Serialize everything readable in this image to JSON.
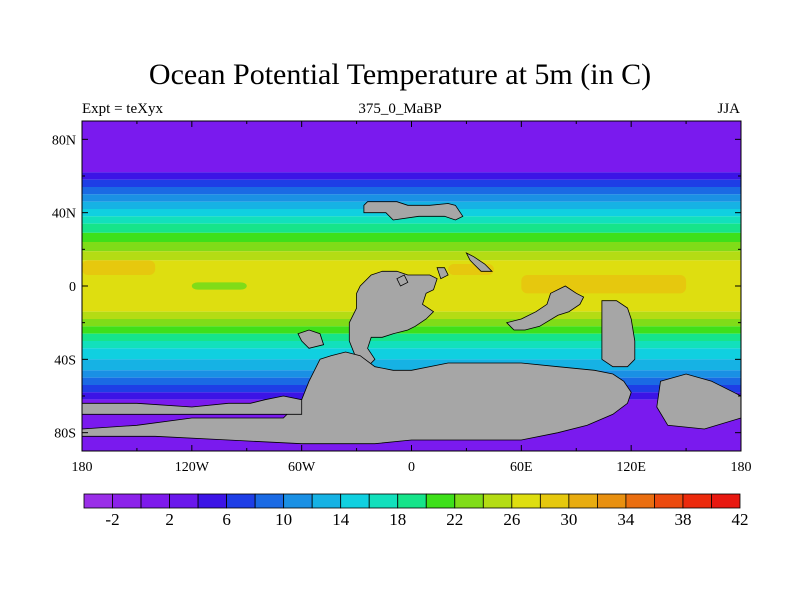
{
  "title": "Ocean Potential Temperature at 5m (in C)",
  "subtitle_left": "Expt = teXyx",
  "subtitle_center": "375_0_MaBP",
  "subtitle_right": "JJA",
  "lat_labels": [
    "80N",
    "40N",
    "0",
    "40S",
    "80S"
  ],
  "lat_values": [
    80,
    40,
    0,
    -40,
    -80
  ],
  "lon_labels": [
    "180",
    "120W",
    "60W",
    "0",
    "60E",
    "120E",
    "180"
  ],
  "lon_values": [
    -180,
    -120,
    -60,
    0,
    60,
    120,
    180
  ],
  "colorbar": {
    "labels": [
      "-2",
      "2",
      "6",
      "10",
      "14",
      "18",
      "22",
      "26",
      "30",
      "34",
      "38",
      "42"
    ],
    "colors": [
      "#9a2ee8",
      "#8c22ea",
      "#7e1aec",
      "#6a18ec",
      "#3c14e6",
      "#1e3ee6",
      "#1a6ae4",
      "#1a90e4",
      "#16b2e4",
      "#10d0e0",
      "#12e0bc",
      "#16e48a",
      "#3ee01a",
      "#80dc18",
      "#b4dc14",
      "#dede10",
      "#e6c80e",
      "#e8ac10",
      "#e89010",
      "#ea6e10",
      "#ec4a0e",
      "#ec2a0c",
      "#e81810"
    ]
  },
  "land_color": "#a6a6a6",
  "map_fields": {
    "zonal_bands": [
      {
        "lat_top": 90,
        "lat_bottom": 62,
        "color": "#7a1aee"
      },
      {
        "lat_top": 62,
        "lat_bottom": 58,
        "color": "#3c14e6"
      },
      {
        "lat_top": 58,
        "lat_bottom": 54,
        "color": "#1e3ee6"
      },
      {
        "lat_top": 54,
        "lat_bottom": 50,
        "color": "#1a6ae4"
      },
      {
        "lat_top": 50,
        "lat_bottom": 46,
        "color": "#1a90e4"
      },
      {
        "lat_top": 46,
        "lat_bottom": 42,
        "color": "#16b2e4"
      },
      {
        "lat_top": 42,
        "lat_bottom": 38,
        "color": "#10d0e0"
      },
      {
        "lat_top": 38,
        "lat_bottom": 34,
        "color": "#12e0bc"
      },
      {
        "lat_top": 34,
        "lat_bottom": 29,
        "color": "#16e48a"
      },
      {
        "lat_top": 29,
        "lat_bottom": 24,
        "color": "#3ee01a"
      },
      {
        "lat_top": 24,
        "lat_bottom": 19,
        "color": "#80dc18"
      },
      {
        "lat_top": 19,
        "lat_bottom": 14,
        "color": "#b4dc14"
      },
      {
        "lat_top": 14,
        "lat_bottom": -14,
        "color": "#dede10"
      },
      {
        "lat_top": -14,
        "lat_bottom": -18,
        "color": "#b4dc14"
      },
      {
        "lat_top": -18,
        "lat_bottom": -22,
        "color": "#80dc18"
      },
      {
        "lat_top": -22,
        "lat_bottom": -26,
        "color": "#3ee01a"
      },
      {
        "lat_top": -26,
        "lat_bottom": -30,
        "color": "#16e48a"
      },
      {
        "lat_top": -30,
        "lat_bottom": -34,
        "color": "#12e0bc"
      },
      {
        "lat_top": -34,
        "lat_bottom": -40,
        "color": "#10d0e0"
      },
      {
        "lat_top": -40,
        "lat_bottom": -46,
        "color": "#16b2e4"
      },
      {
        "lat_top": -46,
        "lat_bottom": -50,
        "color": "#1a90e4"
      },
      {
        "lat_top": -50,
        "lat_bottom": -54,
        "color": "#1a6ae4"
      },
      {
        "lat_top": -54,
        "lat_bottom": -58,
        "color": "#1e3ee6"
      },
      {
        "lat_top": -58,
        "lat_bottom": -62,
        "color": "#3c14e6"
      },
      {
        "lat_top": -62,
        "lat_bottom": -90,
        "color": "#7a1aee"
      }
    ],
    "warm_patches": [
      {
        "lon": [
          -180,
          -140
        ],
        "lat": [
          14,
          6
        ],
        "color": "#e6c80e"
      },
      {
        "lon": [
          -120,
          -90
        ],
        "lat": [
          2,
          -2
        ],
        "color": "#80dc18"
      },
      {
        "lon": [
          60,
          150
        ],
        "lat": [
          6,
          -4
        ],
        "color": "#e6c80e"
      },
      {
        "lon": [
          20,
          45
        ],
        "lat": [
          12,
          6
        ],
        "color": "#e6c80e"
      }
    ],
    "land": [
      [
        [
          -26,
          44
        ],
        [
          -24,
          46
        ],
        [
          -8,
          46
        ],
        [
          -2,
          44
        ],
        [
          10,
          44
        ],
        [
          20,
          45
        ],
        [
          24,
          44
        ],
        [
          28,
          38
        ],
        [
          24,
          36
        ],
        [
          18,
          38
        ],
        [
          10,
          38
        ],
        [
          4,
          38
        ],
        [
          -10,
          36
        ],
        [
          -14,
          40
        ],
        [
          -26,
          40
        ]
      ],
      [
        [
          30,
          18
        ],
        [
          34,
          16
        ],
        [
          40,
          12
        ],
        [
          44,
          8
        ],
        [
          38,
          8
        ],
        [
          34,
          12
        ],
        [
          32,
          14
        ]
      ],
      [
        [
          -22,
          6
        ],
        [
          -16,
          8
        ],
        [
          -8,
          8
        ],
        [
          -2,
          6
        ],
        [
          4,
          6
        ],
        [
          10,
          6
        ],
        [
          14,
          4
        ],
        [
          12,
          -2
        ],
        [
          8,
          -4
        ],
        [
          6,
          -10
        ],
        [
          12,
          -14
        ],
        [
          8,
          -18
        ],
        [
          2,
          -22
        ],
        [
          -2,
          -24
        ],
        [
          -10,
          -26
        ],
        [
          -16,
          -28
        ],
        [
          -22,
          -28
        ],
        [
          -24,
          -34
        ],
        [
          -20,
          -40
        ],
        [
          -24,
          -44
        ],
        [
          -30,
          -46
        ],
        [
          -30,
          -40
        ],
        [
          -34,
          -30
        ],
        [
          -34,
          -20
        ],
        [
          -30,
          -12
        ],
        [
          -30,
          -4
        ],
        [
          -28,
          0
        ]
      ],
      [
        [
          76,
          -4
        ],
        [
          84,
          0
        ],
        [
          90,
          -4
        ],
        [
          94,
          -6
        ],
        [
          92,
          -10
        ],
        [
          86,
          -14
        ],
        [
          80,
          -16
        ],
        [
          70,
          -22
        ],
        [
          62,
          -24
        ],
        [
          56,
          -24
        ],
        [
          52,
          -20
        ],
        [
          60,
          -18
        ],
        [
          68,
          -14
        ],
        [
          74,
          -10
        ]
      ],
      [
        [
          104,
          -8
        ],
        [
          112,
          -8
        ],
        [
          118,
          -12
        ],
        [
          120,
          -18
        ],
        [
          122,
          -30
        ],
        [
          122,
          -40
        ],
        [
          118,
          -44
        ],
        [
          110,
          -44
        ],
        [
          104,
          -40
        ],
        [
          104,
          -24
        ]
      ],
      [
        [
          -50,
          -40
        ],
        [
          -44,
          -38
        ],
        [
          -36,
          -36
        ],
        [
          -28,
          -38
        ],
        [
          -20,
          -44
        ],
        [
          -10,
          -46
        ],
        [
          0,
          -46
        ],
        [
          20,
          -42
        ],
        [
          40,
          -42
        ],
        [
          60,
          -42
        ],
        [
          80,
          -44
        ],
        [
          100,
          -46
        ],
        [
          110,
          -48
        ],
        [
          116,
          -52
        ],
        [
          120,
          -58
        ],
        [
          118,
          -64
        ],
        [
          110,
          -70
        ],
        [
          96,
          -76
        ],
        [
          80,
          -80
        ],
        [
          60,
          -84
        ],
        [
          30,
          -84
        ],
        [
          0,
          -84
        ],
        [
          -20,
          -86
        ],
        [
          -60,
          -86
        ],
        [
          -100,
          -84
        ],
        [
          -140,
          -82
        ],
        [
          -170,
          -82
        ],
        [
          -180,
          -82
        ],
        [
          -180,
          -78
        ],
        [
          -150,
          -76
        ],
        [
          -120,
          -72
        ],
        [
          -70,
          -72
        ],
        [
          -60,
          -62
        ],
        [
          -56,
          -52
        ]
      ],
      [
        [
          -180,
          -64
        ],
        [
          -150,
          -64
        ],
        [
          -120,
          -66
        ],
        [
          -100,
          -64
        ],
        [
          -88,
          -64
        ],
        [
          -80,
          -62
        ],
        [
          -70,
          -60
        ],
        [
          -60,
          -62
        ],
        [
          -60,
          -70
        ],
        [
          -80,
          -70
        ],
        [
          -100,
          -70
        ],
        [
          -130,
          -70
        ],
        [
          -160,
          -70
        ],
        [
          -180,
          -70
        ]
      ],
      [
        [
          136,
          -52
        ],
        [
          150,
          -48
        ],
        [
          164,
          -52
        ],
        [
          176,
          -58
        ],
        [
          180,
          -60
        ],
        [
          180,
          -72
        ],
        [
          160,
          -78
        ],
        [
          140,
          -76
        ],
        [
          134,
          -66
        ]
      ],
      [
        [
          -8,
          4
        ],
        [
          -4,
          6
        ],
        [
          -2,
          2
        ],
        [
          -6,
          0
        ]
      ],
      [
        [
          14,
          10
        ],
        [
          18,
          10
        ],
        [
          20,
          6
        ],
        [
          16,
          4
        ]
      ],
      [
        [
          -62,
          -26
        ],
        [
          -56,
          -24
        ],
        [
          -50,
          -26
        ],
        [
          -48,
          -32
        ],
        [
          -56,
          -34
        ],
        [
          -60,
          -30
        ]
      ]
    ]
  }
}
